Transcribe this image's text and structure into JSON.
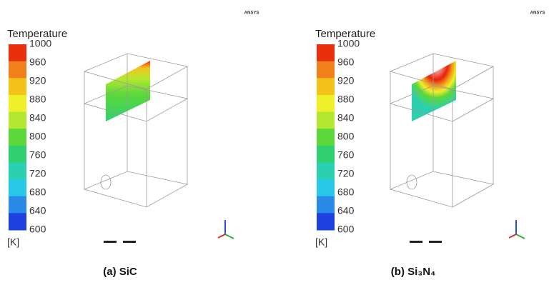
{
  "panels": [
    {
      "logo": "ANSYS",
      "colorbar": {
        "title": "Temperature",
        "ticks": [
          1000,
          960,
          920,
          880,
          840,
          800,
          760,
          720,
          680,
          640,
          600
        ],
        "unit": "[K]",
        "colors": [
          "#e8300c",
          "#f2801a",
          "#f5c21c",
          "#eef02a",
          "#b4e830",
          "#5cd83a",
          "#30d070",
          "#2ad0b0",
          "#28c8e8",
          "#2a8ae8",
          "#1e40e0"
        ]
      },
      "caption": "(a) SiC"
    },
    {
      "logo": "ANSYS",
      "colorbar": {
        "title": "Temperature",
        "ticks": [
          1000,
          960,
          920,
          880,
          840,
          800,
          760,
          720,
          680,
          640,
          600
        ],
        "unit": "[K]",
        "colors": [
          "#e8300c",
          "#f2801a",
          "#f5c21c",
          "#eef02a",
          "#b4e830",
          "#5cd83a",
          "#30d070",
          "#2ad0b0",
          "#28c8e8",
          "#2a8ae8",
          "#1e40e0"
        ]
      },
      "caption": "(b) Si₃N₄"
    }
  ]
}
